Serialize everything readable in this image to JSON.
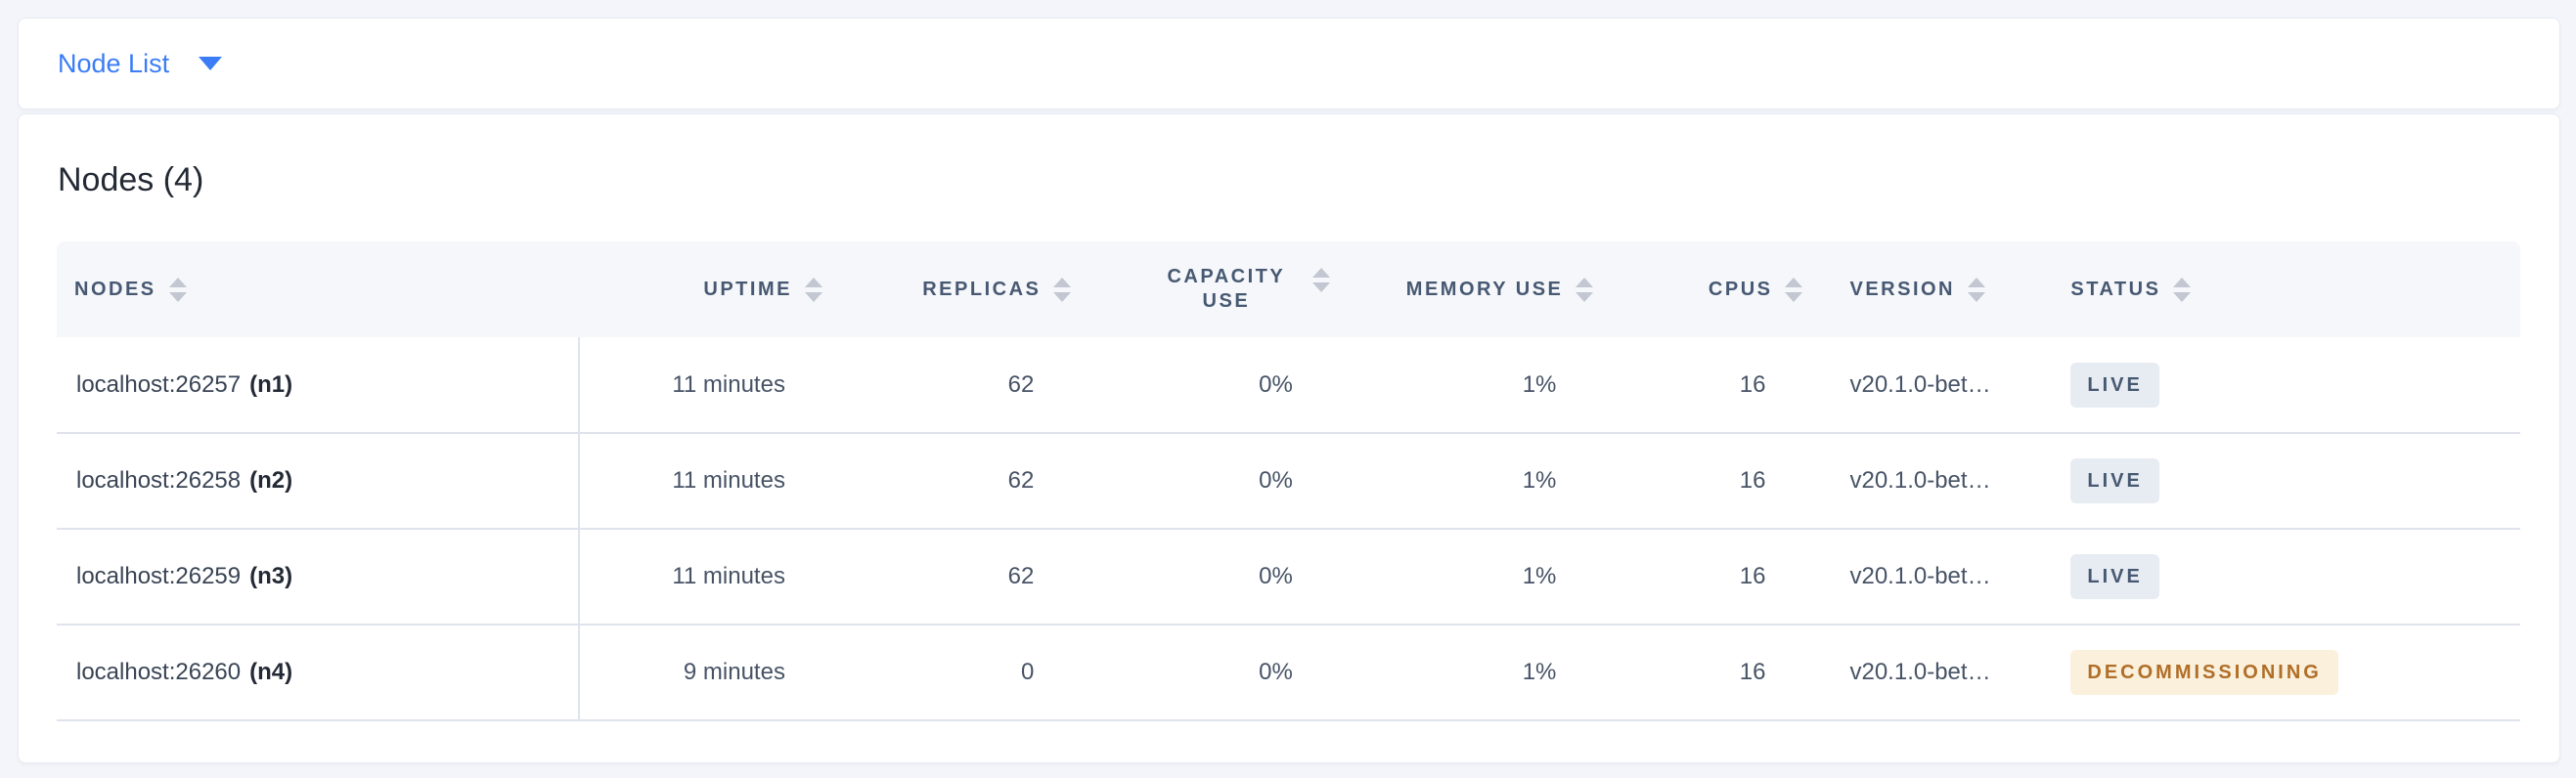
{
  "header": {
    "dropdown_label": "Node List"
  },
  "main": {
    "heading": "Nodes (4)"
  },
  "table": {
    "columns": [
      {
        "label": "NODES"
      },
      {
        "label": "UPTIME"
      },
      {
        "label": "REPLICAS"
      },
      {
        "label": "CAPACITY USE"
      },
      {
        "label": "MEMORY USE"
      },
      {
        "label": "CPUS"
      },
      {
        "label": "VERSION"
      },
      {
        "label": "STATUS"
      }
    ],
    "rows": [
      {
        "address": "localhost:26257",
        "node_id": "(n1)",
        "uptime": "11 minutes",
        "replicas": "62",
        "capacity_use": "0%",
        "memory_use": "1%",
        "cpus": "16",
        "version": "v20.1.0-bet…",
        "status": "LIVE"
      },
      {
        "address": "localhost:26258",
        "node_id": "(n2)",
        "uptime": "11 minutes",
        "replicas": "62",
        "capacity_use": "0%",
        "memory_use": "1%",
        "cpus": "16",
        "version": "v20.1.0-bet…",
        "status": "LIVE"
      },
      {
        "address": "localhost:26259",
        "node_id": "(n3)",
        "uptime": "11 minutes",
        "replicas": "62",
        "capacity_use": "0%",
        "memory_use": "1%",
        "cpus": "16",
        "version": "v20.1.0-bet…",
        "status": "LIVE"
      },
      {
        "address": "localhost:26260",
        "node_id": "(n4)",
        "uptime": "9 minutes",
        "replicas": "0",
        "capacity_use": "0%",
        "memory_use": "1%",
        "cpus": "16",
        "version": "v20.1.0-bet…",
        "status": "DECOMMISSIONING"
      }
    ]
  },
  "icons": {
    "caret": "caret-down-icon",
    "sort": "sort-arrows-icon"
  },
  "colors": {
    "accent_blue": "#3a7df6",
    "page_background": "#f3f5fa",
    "header_band": "#f5f7fa",
    "row_border": "#dfe3ec",
    "header_text": "#475872",
    "cell_text": "#475366",
    "live_badge_bg": "#e7ebf2",
    "live_badge_text": "#475872",
    "decommissioning_badge_bg": "#faf0dc",
    "decommissioning_badge_text": "#b06e28"
  }
}
